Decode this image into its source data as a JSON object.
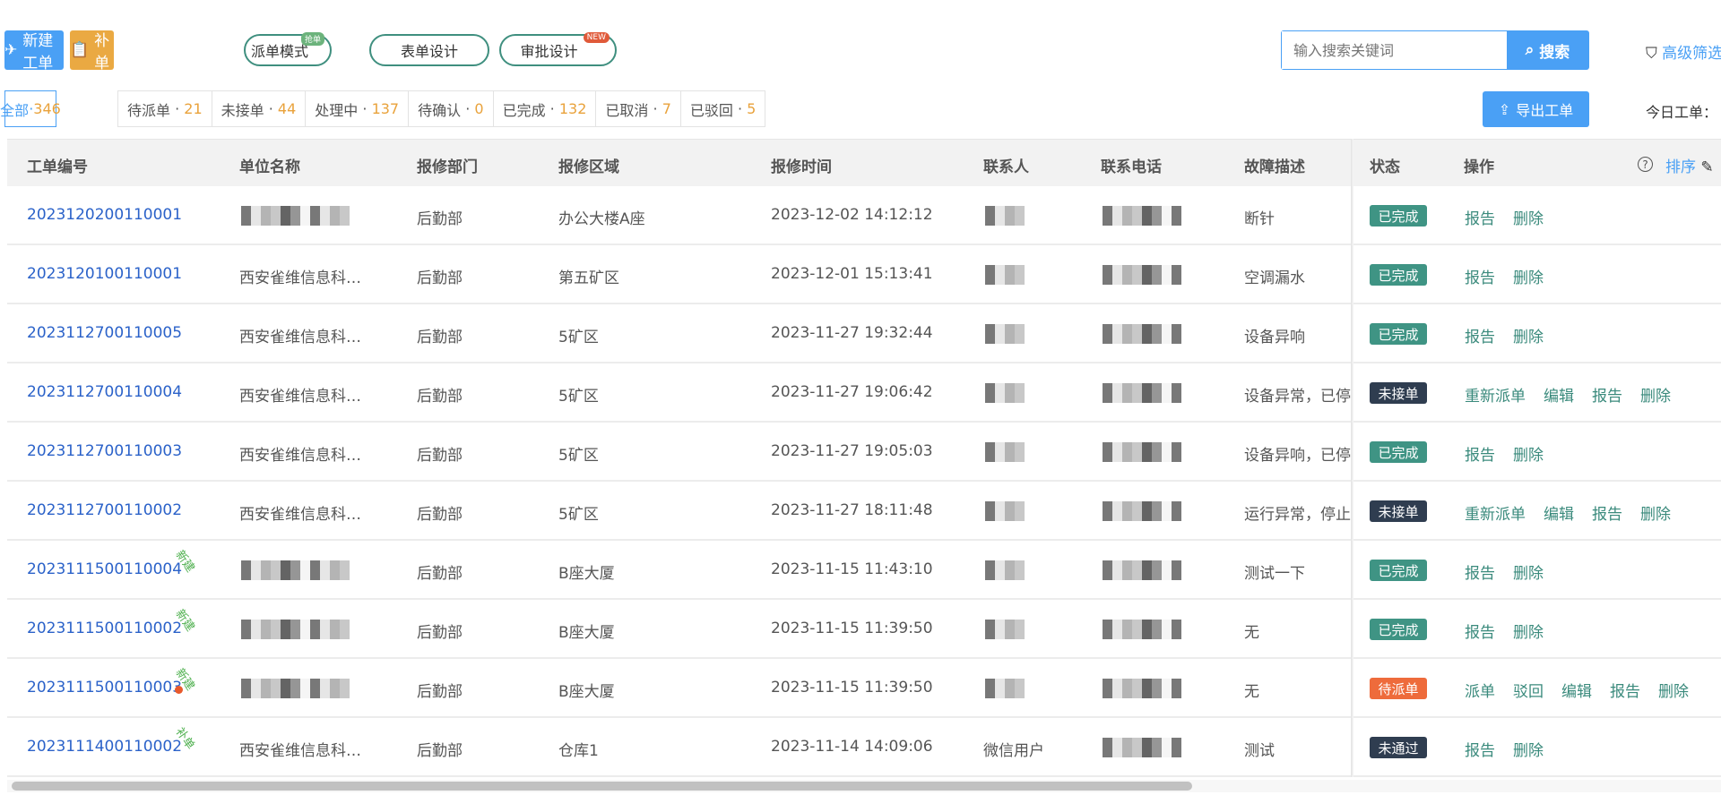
{
  "toolbar": {
    "new_order": "新建工单",
    "supplement": "补单",
    "dispatch_mode": "派单模式",
    "dispatch_tag": "抢单",
    "form_design": "表单设计",
    "approval_design": "审批设计",
    "approval_tag": "NEW",
    "search_placeholder": "输入搜索关键词",
    "search": "搜索",
    "advanced_filter": "高级筛选",
    "export": "导出工单",
    "today": "今日工单："
  },
  "tabs": [
    {
      "label": "全部",
      "count": "346"
    },
    {
      "label": "待派单",
      "count": "21"
    },
    {
      "label": "未接单",
      "count": "44"
    },
    {
      "label": "处理中",
      "count": "137"
    },
    {
      "label": "待确认",
      "count": "0"
    },
    {
      "label": "已完成",
      "count": "132"
    },
    {
      "label": "已取消",
      "count": "7"
    },
    {
      "label": "已驳回",
      "count": "5"
    }
  ],
  "columns": [
    "工单编号",
    "单位名称",
    "报修部门",
    "报修区域",
    "报修时间",
    "联系人",
    "联系电话",
    "故障描述",
    "状态",
    "操作"
  ],
  "sort_label": "排序",
  "colors": {
    "primary": "#4aa0f5",
    "warning": "#eaa942",
    "completed": "#3f9484",
    "not_accepted": "#2f3d50",
    "pending": "#ee6b3b",
    "link": "#2b62c9",
    "action": "#3a8a7c"
  },
  "rows": [
    {
      "id": "2023120200110001",
      "unit": "",
      "dept": "后勤部",
      "area": "办公大楼A座",
      "time": "2023-12-02 14:12:12",
      "contact": "",
      "phone": "",
      "desc": "断针",
      "status": "已完成",
      "status_color": "#3f9484",
      "ops": [
        "报告",
        "删除"
      ],
      "tag": "",
      "dot": false
    },
    {
      "id": "2023120100110001",
      "unit": "西安雀维信息科…",
      "dept": "后勤部",
      "area": "第五矿区",
      "time": "2023-12-01 15:13:41",
      "contact": "",
      "phone": "",
      "desc": "空调漏水",
      "status": "已完成",
      "status_color": "#3f9484",
      "ops": [
        "报告",
        "删除"
      ],
      "tag": "",
      "dot": false
    },
    {
      "id": "2023112700110005",
      "unit": "西安雀维信息科…",
      "dept": "后勤部",
      "area": "5矿区",
      "time": "2023-11-27 19:32:44",
      "contact": "",
      "phone": "",
      "desc": "设备异响",
      "status": "已完成",
      "status_color": "#3f9484",
      "ops": [
        "报告",
        "删除"
      ],
      "tag": "",
      "dot": false
    },
    {
      "id": "2023112700110004",
      "unit": "西安雀维信息科…",
      "dept": "后勤部",
      "area": "5矿区",
      "time": "2023-11-27 19:06:42",
      "contact": "",
      "phone": "",
      "desc": "设备异常，已停",
      "status": "未接单",
      "status_color": "#2f3d50",
      "ops": [
        "重新派单",
        "编辑",
        "报告",
        "删除"
      ],
      "tag": "",
      "dot": false
    },
    {
      "id": "2023112700110003",
      "unit": "西安雀维信息科…",
      "dept": "后勤部",
      "area": "5矿区",
      "time": "2023-11-27 19:05:03",
      "contact": "",
      "phone": "",
      "desc": "设备异响，已停",
      "status": "已完成",
      "status_color": "#3f9484",
      "ops": [
        "报告",
        "删除"
      ],
      "tag": "",
      "dot": false
    },
    {
      "id": "2023112700110002",
      "unit": "西安雀维信息科…",
      "dept": "后勤部",
      "area": "5矿区",
      "time": "2023-11-27 18:11:48",
      "contact": "",
      "phone": "",
      "desc": "运行异常，停止",
      "status": "未接单",
      "status_color": "#2f3d50",
      "ops": [
        "重新派单",
        "编辑",
        "报告",
        "删除"
      ],
      "tag": "",
      "dot": false
    },
    {
      "id": "2023111500110004",
      "unit": "",
      "dept": "后勤部",
      "area": "B座大厦",
      "time": "2023-11-15 11:43:10",
      "contact": "",
      "phone": "",
      "desc": "测试一下",
      "status": "已完成",
      "status_color": "#3f9484",
      "ops": [
        "报告",
        "删除"
      ],
      "tag": "新建",
      "dot": false
    },
    {
      "id": "2023111500110002",
      "unit": "",
      "dept": "后勤部",
      "area": "B座大厦",
      "time": "2023-11-15 11:39:50",
      "contact": "",
      "phone": "",
      "desc": "无",
      "status": "已完成",
      "status_color": "#3f9484",
      "ops": [
        "报告",
        "删除"
      ],
      "tag": "新建",
      "dot": false
    },
    {
      "id": "2023111500110003",
      "unit": "",
      "dept": "后勤部",
      "area": "B座大厦",
      "time": "2023-11-15 11:39:50",
      "contact": "",
      "phone": "",
      "desc": "无",
      "status": "待派单",
      "status_color": "#ee6b3b",
      "ops": [
        "派单",
        "驳回",
        "编辑",
        "报告",
        "删除"
      ],
      "tag": "新建",
      "dot": true
    },
    {
      "id": "2023111400110002",
      "unit": "西安雀维信息科…",
      "dept": "后勤部",
      "area": "仓库1",
      "time": "2023-11-14 14:09:06",
      "contact": "微信用户",
      "phone": "",
      "desc": "测试",
      "status": "未通过",
      "status_color": "#2f3d50",
      "ops": [
        "报告",
        "删除"
      ],
      "tag": "补单",
      "dot": false
    }
  ]
}
